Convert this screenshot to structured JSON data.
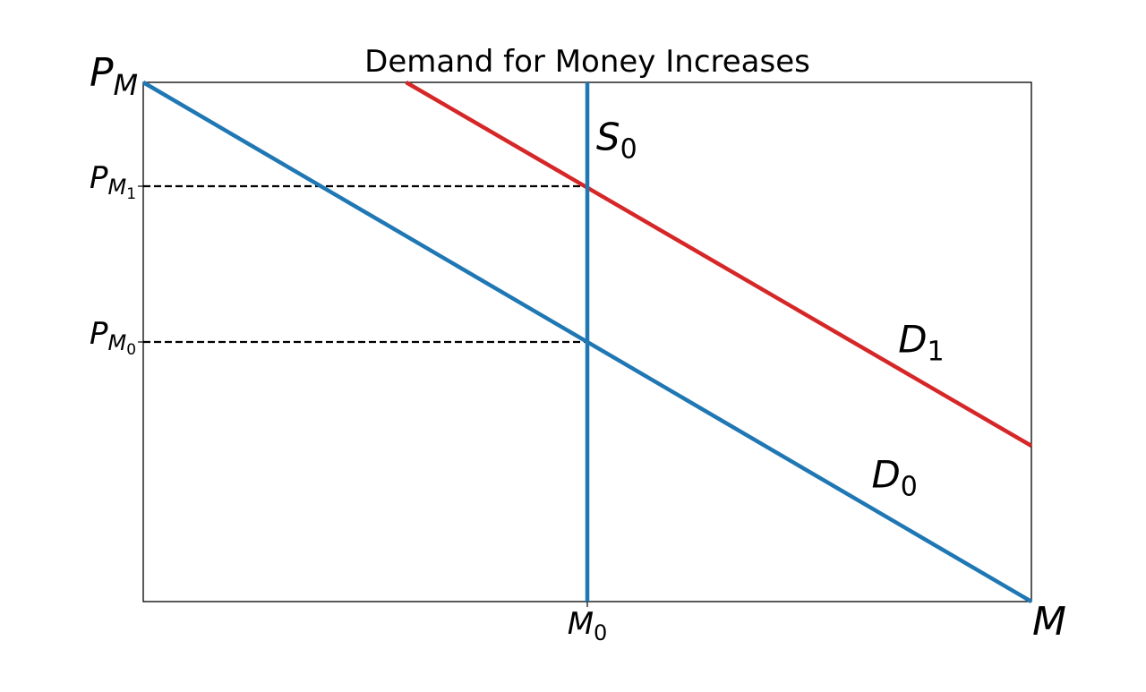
{
  "chart_data": {
    "type": "line",
    "title": "Demand for Money Increases",
    "xlabel": {
      "base": "M",
      "sub": ""
    },
    "ylabel": {
      "base": "P",
      "sub": "M"
    },
    "xlim": [
      0,
      10
    ],
    "ylim": [
      0,
      10
    ],
    "grid": false,
    "legend": "none",
    "series": [
      {
        "name": "D0",
        "label_base": "D",
        "label_sub": "0",
        "color": "#1f77b4",
        "x": [
          0,
          10
        ],
        "y": [
          10,
          0
        ],
        "label_at": [
          8.2,
          2.2
        ]
      },
      {
        "name": "D1",
        "label_base": "D",
        "label_sub": "1",
        "color": "#d62728",
        "x": [
          2.96,
          10
        ],
        "y": [
          10,
          3
        ],
        "label_at": [
          8.5,
          4.8
        ]
      },
      {
        "name": "S0",
        "label_base": "S",
        "label_sub": "0",
        "color": "#1f77b4",
        "x": [
          5,
          5
        ],
        "y": [
          0,
          10
        ],
        "label_at": [
          5.1,
          8.7
        ]
      }
    ],
    "reference_lines": [
      {
        "name": "pm1-guide",
        "y": 8,
        "x": [
          0,
          5
        ],
        "color": "#000000",
        "dashed": true
      },
      {
        "name": "pm0-guide",
        "y": 5,
        "x": [
          0,
          5
        ],
        "color": "#000000",
        "dashed": true
      }
    ],
    "xticks": [
      {
        "value": 5,
        "base": "M",
        "sub": "0"
      }
    ],
    "yticks": [
      {
        "value": 8,
        "base": "P",
        "sub": "M",
        "subsub": "1"
      },
      {
        "value": 5,
        "base": "P",
        "sub": "M",
        "subsub": "0"
      }
    ]
  }
}
